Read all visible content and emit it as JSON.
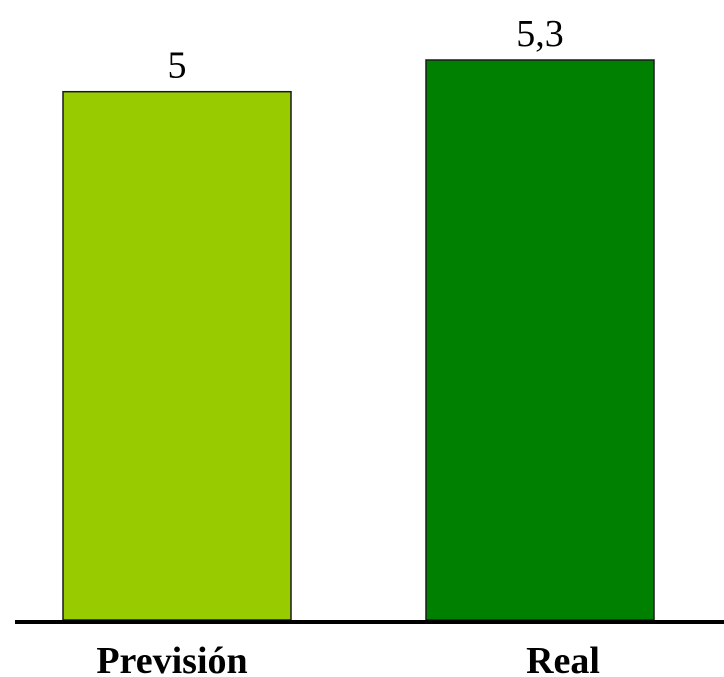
{
  "chart_data": {
    "type": "bar",
    "categories": [
      "Previsión",
      "Real"
    ],
    "values": [
      5,
      5.3
    ],
    "value_labels": [
      "5",
      "5,3"
    ],
    "colors": [
      "#99cc00",
      "#008000"
    ],
    "title": "",
    "xlabel": "",
    "ylabel": "",
    "ylim": [
      0,
      5.3
    ],
    "grid": false,
    "legend": "none"
  }
}
